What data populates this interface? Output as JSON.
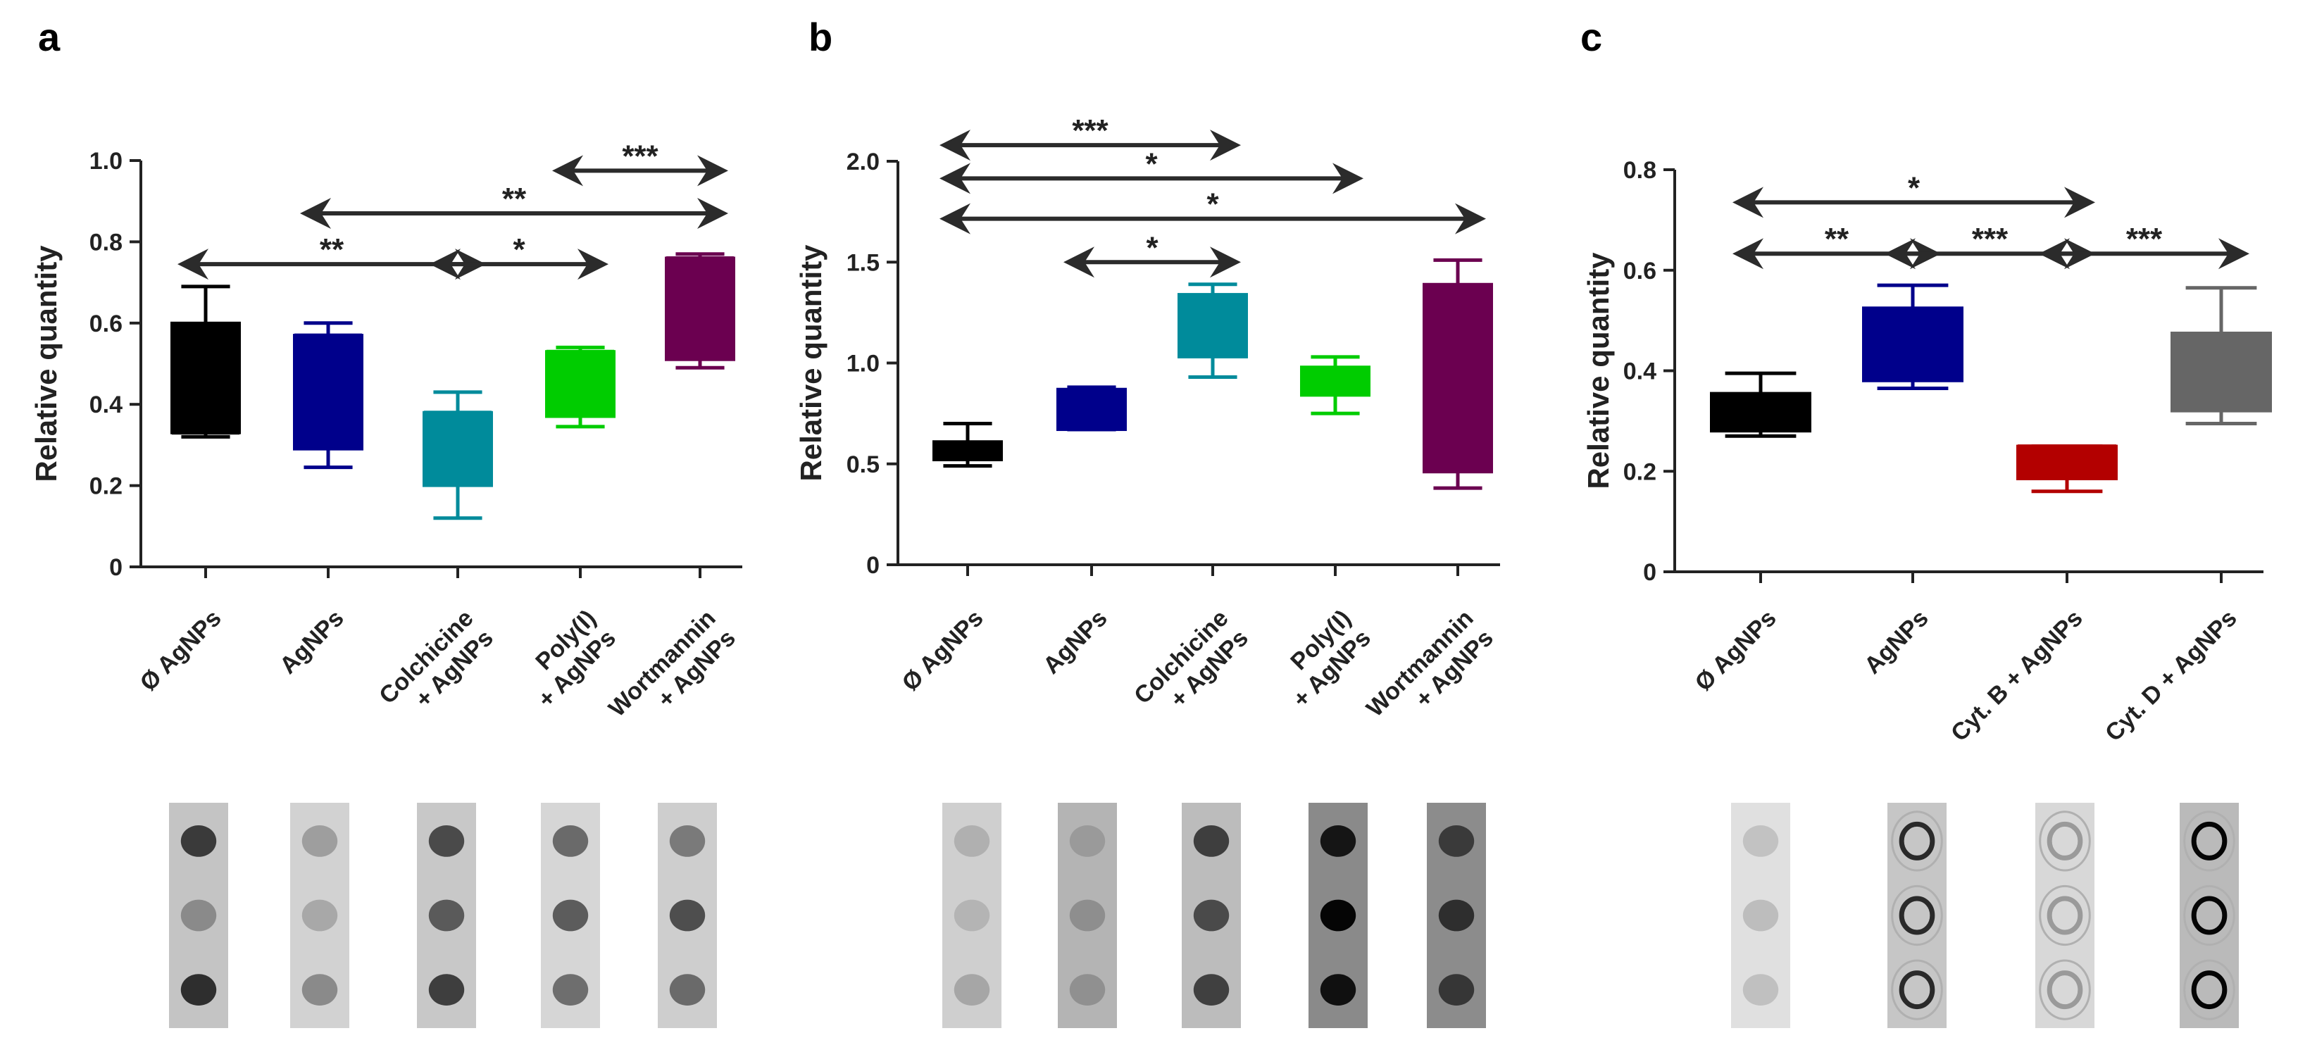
{
  "figure": {
    "background": "#ffffff",
    "text_color": "#222222"
  },
  "chart_data": [
    {
      "panel": "a",
      "type": "box",
      "ylabel": "Relative quantity",
      "ylim": [
        0,
        1.0
      ],
      "yticks": [
        "0",
        "0.2",
        "0.4",
        "0.6",
        "0.8",
        "1.0"
      ],
      "ytick_values": [
        0,
        0.2,
        0.4,
        0.6,
        0.8,
        1.0
      ],
      "categories": [
        {
          "label": [
            "Ø AgNPs"
          ],
          "color": "#000000",
          "whisker_low": 0.32,
          "q1": 0.33,
          "median": 0.33,
          "q3": 0.6,
          "whisker_high": 0.69
        },
        {
          "label": [
            "AgNPs"
          ],
          "color": "#00008b",
          "whisker_low": 0.245,
          "q1": 0.29,
          "median": 0.57,
          "q3": 0.57,
          "whisker_high": 0.6
        },
        {
          "label": [
            "Colchicine",
            "+ AgNPs"
          ],
          "color": "#008b9b",
          "whisker_low": 0.12,
          "q1": 0.2,
          "median": 0.38,
          "q3": 0.38,
          "whisker_high": 0.43
        },
        {
          "label": [
            "Poly(I)",
            "+ AgNPs"
          ],
          "color": "#00cc00",
          "whisker_low": 0.345,
          "q1": 0.37,
          "median": 0.53,
          "q3": 0.53,
          "whisker_high": 0.54
        },
        {
          "label": [
            "Wortmannin",
            "+ AgNPs"
          ],
          "color": "#6b0050",
          "whisker_low": 0.49,
          "q1": 0.51,
          "median": 0.76,
          "q3": 0.76,
          "whisker_high": 0.77
        }
      ],
      "significance": [
        {
          "from": 0,
          "to": 2,
          "y": 0.745,
          "label": "**"
        },
        {
          "from": 2,
          "to": 3,
          "y": 0.745,
          "label": "*"
        },
        {
          "from": 1,
          "to": 4,
          "y": 0.87,
          "label": "**"
        },
        {
          "from": 3,
          "to": 4,
          "y": 0.975,
          "label": "***"
        }
      ],
      "blots": {
        "columns": [
          {
            "bg": "#c4c4c4",
            "spots": [
              "#3a3a3a",
              "#8a8a8a",
              "#2e2e2e"
            ]
          },
          {
            "bg": "#d2d2d2",
            "spots": [
              "#9e9e9e",
              "#a8a8a8",
              "#8a8a8a"
            ]
          },
          {
            "bg": "#c8c8c8",
            "spots": [
              "#4a4a4a",
              "#5a5a5a",
              "#3e3e3e"
            ]
          },
          {
            "bg": "#d6d6d6",
            "spots": [
              "#6a6a6a",
              "#5c5c5c",
              "#6e6e6e"
            ]
          },
          {
            "bg": "#cecece",
            "spots": [
              "#7a7a7a",
              "#4e4e4e",
              "#6a6a6a"
            ]
          }
        ]
      }
    },
    {
      "panel": "b",
      "type": "box",
      "ylabel": "Relative quantity",
      "ylim": [
        0,
        2.0
      ],
      "yticks": [
        "0",
        "0.5",
        "1.0",
        "1.5",
        "2.0"
      ],
      "ytick_values": [
        0,
        0.5,
        1.0,
        1.5,
        2.0
      ],
      "categories": [
        {
          "label": [
            "Ø AgNPs"
          ],
          "color": "#000000",
          "whisker_low": 0.49,
          "q1": 0.52,
          "median": 0.58,
          "q3": 0.61,
          "whisker_high": 0.7
        },
        {
          "label": [
            "AgNPs"
          ],
          "color": "#00008b",
          "whisker_low": 0.67,
          "q1": 0.67,
          "median": 0.86,
          "q3": 0.87,
          "whisker_high": 0.88
        },
        {
          "label": [
            "Colchicine",
            "+ AgNPs"
          ],
          "color": "#008b9b",
          "whisker_low": 0.93,
          "q1": 1.03,
          "median": 1.33,
          "q3": 1.34,
          "whisker_high": 1.39
        },
        {
          "label": [
            "Poly(I)",
            "+ AgNPs"
          ],
          "color": "#00cc00",
          "whisker_low": 0.75,
          "q1": 0.84,
          "median": 0.97,
          "q3": 0.98,
          "whisker_high": 1.03
        },
        {
          "label": [
            "Wortmannin",
            "+ AgNPs"
          ],
          "color": "#6b0050",
          "whisker_low": 0.38,
          "q1": 0.46,
          "median": 1.38,
          "q3": 1.39,
          "whisker_high": 1.51
        }
      ],
      "significance": [
        {
          "from": 1,
          "to": 2,
          "y": 1.5,
          "label": "*"
        },
        {
          "from": 0,
          "to": 4,
          "y": 1.715,
          "label": "*"
        },
        {
          "from": 0,
          "to": 3,
          "y": 1.915,
          "label": "*"
        },
        {
          "from": 0,
          "to": 2,
          "y": 2.08,
          "label": "***"
        }
      ],
      "blots": {
        "columns": [
          {
            "bg": "#cfcfcf",
            "spots": [
              "#b0b0b0",
              "#b4b4b4",
              "#a6a6a6"
            ]
          },
          {
            "bg": "#b4b4b4",
            "spots": [
              "#9a9a9a",
              "#8e8e8e",
              "#909090"
            ]
          },
          {
            "bg": "#bcbcbc",
            "spots": [
              "#3e3e3e",
              "#4a4a4a",
              "#404040"
            ]
          },
          {
            "bg": "#8a8a8a",
            "spots": [
              "#151515",
              "#050505",
              "#101010"
            ]
          },
          {
            "bg": "#8c8c8c",
            "spots": [
              "#3a3a3a",
              "#2e2e2e",
              "#363636"
            ]
          }
        ]
      }
    },
    {
      "panel": "c",
      "type": "box",
      "ylabel": "Relative quantity",
      "ylim": [
        0,
        0.8
      ],
      "yticks": [
        "0",
        "0.2",
        "0.4",
        "0.6",
        "0.8"
      ],
      "ytick_values": [
        0,
        0.2,
        0.4,
        0.6,
        0.8
      ],
      "categories": [
        {
          "label": [
            "Ø AgNPs"
          ],
          "color": "#000000",
          "whisker_low": 0.27,
          "q1": 0.28,
          "median": 0.35,
          "q3": 0.355,
          "whisker_high": 0.395
        },
        {
          "label": [
            "AgNPs"
          ],
          "color": "#00008b",
          "whisker_low": 0.365,
          "q1": 0.38,
          "median": 0.52,
          "q3": 0.525,
          "whisker_high": 0.57
        },
        {
          "label": [
            "Cyt. B + AgNPs"
          ],
          "color": "#b30000",
          "whisker_low": 0.16,
          "q1": 0.185,
          "median": 0.25,
          "q3": 0.25,
          "whisker_high": 0.25
        },
        {
          "label": [
            "Cyt. D + AgNPs"
          ],
          "color": "#666666",
          "whisker_low": 0.295,
          "q1": 0.32,
          "median": 0.47,
          "q3": 0.475,
          "whisker_high": 0.565
        }
      ],
      "significance": [
        {
          "from": 0,
          "to": 1,
          "y": 0.633,
          "label": "**"
        },
        {
          "from": 1,
          "to": 2,
          "y": 0.633,
          "label": "***"
        },
        {
          "from": 2,
          "to": 3,
          "y": 0.633,
          "label": "***"
        },
        {
          "from": 0,
          "to": 2,
          "y": 0.735,
          "label": "*"
        }
      ],
      "blots": {
        "columns": [
          {
            "bg": "#e0e0e0",
            "ring": false,
            "spots": [
              "#c2c2c2",
              "#bdbdbd",
              "#c0c0c0"
            ]
          },
          {
            "bg": "#c6c6c6",
            "ring": true,
            "spots": [
              "#2a2a2a",
              "#2a2a2a",
              "#2a2a2a"
            ]
          },
          {
            "bg": "#d8d8d8",
            "ring": true,
            "spots": [
              "#9a9a9a",
              "#9a9a9a",
              "#9a9a9a"
            ]
          },
          {
            "bg": "#bababa",
            "ring": true,
            "spots": [
              "#050505",
              "#050505",
              "#050505"
            ]
          }
        ]
      }
    }
  ]
}
